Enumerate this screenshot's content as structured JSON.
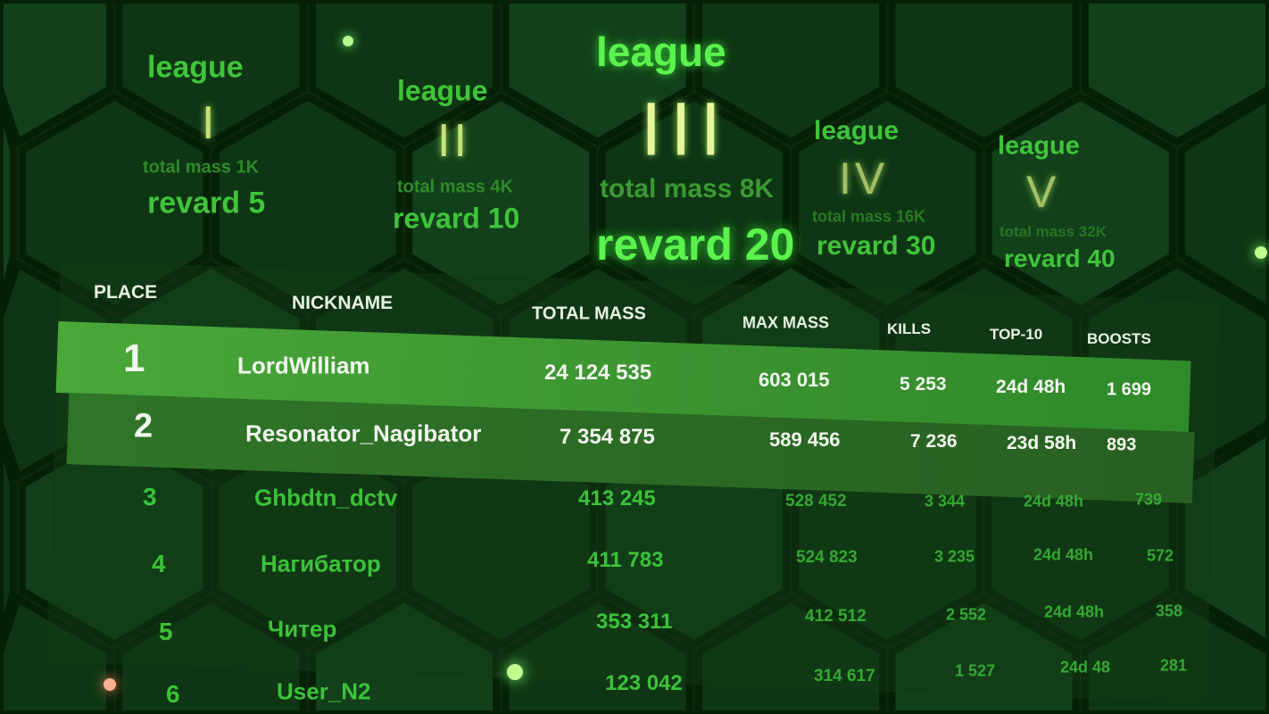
{
  "leagues": [
    {
      "title": "league",
      "numeral": "I",
      "total_mass": "total mass 1K",
      "reward": "revard 5"
    },
    {
      "title": "league",
      "numeral": "II",
      "total_mass": "total mass 4K",
      "reward": "revard 10"
    },
    {
      "title": "league",
      "numeral": "III",
      "total_mass": "total mass 8K",
      "reward": "revard 20",
      "active": true
    },
    {
      "title": "league",
      "numeral": "IV",
      "total_mass": "total mass 16K",
      "reward": "revard 30"
    },
    {
      "title": "league",
      "numeral": "V",
      "total_mass": "total mass 32K",
      "reward": "revard 40"
    }
  ],
  "table": {
    "headers": [
      "PLACE",
      "NICKNAME",
      "TOTAL MASS",
      "MAX MASS",
      "KILLS",
      "TOP-10",
      "BOOSTS"
    ],
    "rows": [
      [
        "1",
        "LordWilliam",
        "24 124 535",
        "603 015",
        "5 253",
        "24d 48h",
        "1 699"
      ],
      [
        "2",
        "Resonator_Nagibator",
        "7 354 875",
        "589 456",
        "7 236",
        "23d 58h",
        "893"
      ],
      [
        "3",
        "Ghbdtn_dctv",
        "413 245",
        "528 452",
        "3 344",
        "24d 48h",
        "739"
      ],
      [
        "4",
        "Нагибатор",
        "411 783",
        "524 823",
        "3 235",
        "24d 48h",
        "572"
      ],
      [
        "5",
        "Читер",
        "353 311",
        "412 512",
        "2 552",
        "24d 48h",
        "358"
      ],
      [
        "6",
        "User_N2",
        "123 042",
        "314 617",
        "1 527",
        "24d 48",
        "281"
      ]
    ]
  },
  "colors": {
    "background": "#0b2a0d",
    "accent": "#3fe03a",
    "row1": "#3f9a2c",
    "row2": "#2a6a22"
  }
}
